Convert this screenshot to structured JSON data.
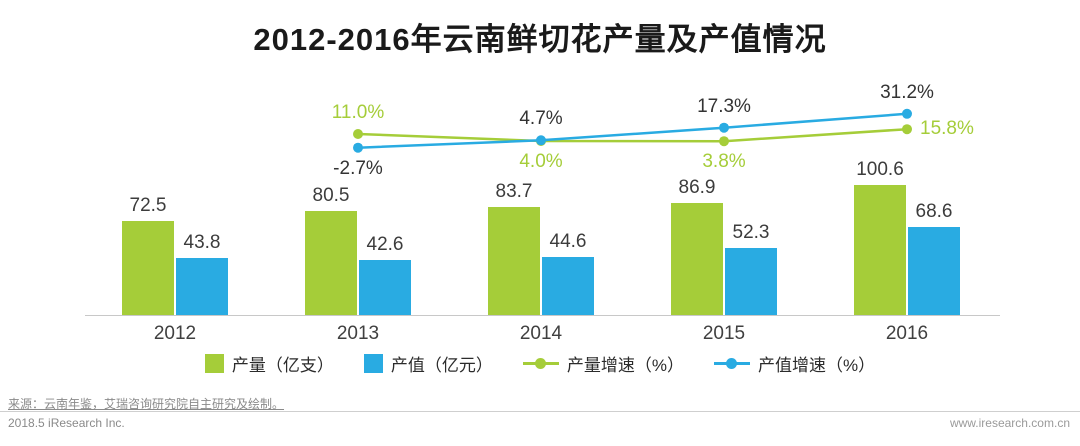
{
  "title": "2012-2016年云南鲜切花产量及产值情况",
  "chart_data": {
    "type": "bar",
    "subtype": "grouped-bars-with-growth-lines",
    "categories": [
      "2012",
      "2013",
      "2014",
      "2015",
      "2016"
    ],
    "bar_series": [
      {
        "name": "产量（亿支）",
        "color": "#a5cd39",
        "values": [
          72.5,
          80.5,
          83.7,
          86.9,
          100.6
        ]
      },
      {
        "name": "产值（亿元）",
        "color": "#29abe2",
        "values": [
          43.8,
          42.6,
          44.6,
          52.3,
          68.6
        ]
      }
    ],
    "line_series": [
      {
        "name": "产量增速（%）",
        "color": "#a5cd39",
        "label_color": "#a5cd39",
        "x": [
          "2013",
          "2014",
          "2015",
          "2016"
        ],
        "values": [
          11.0,
          4.0,
          3.8,
          15.8
        ],
        "labels": [
          "11.0%",
          "4.0%",
          "3.8%",
          "15.8%"
        ],
        "label_positions": [
          "above",
          "below",
          "below",
          "right"
        ]
      },
      {
        "name": "产值增速（%）",
        "color": "#29abe2",
        "label_color": "#333333",
        "x": [
          "2013",
          "2014",
          "2015",
          "2016"
        ],
        "values": [
          -2.7,
          4.7,
          17.3,
          31.2
        ],
        "labels": [
          "-2.7%",
          "4.7%",
          "17.3%",
          "31.2%"
        ],
        "label_positions": [
          "below",
          "above",
          "above",
          "above"
        ]
      }
    ],
    "grid": false,
    "legend_position": "bottom",
    "xlabel": "",
    "ylabel": ""
  },
  "legend": [
    {
      "label": "产量（亿支）",
      "swatch": "square",
      "color": "#a5cd39"
    },
    {
      "label": "产值（亿元）",
      "swatch": "square",
      "color": "#29abe2"
    },
    {
      "label": "产量增速（%）",
      "swatch": "line-dot",
      "color": "#a5cd39"
    },
    {
      "label": "产值增速（%）",
      "swatch": "line-dot",
      "color": "#29abe2"
    }
  ],
  "footer": {
    "source": "来源：云南年鉴，艾瑞咨询研究院自主研究及绘制。",
    "left": "2018.5 iResearch Inc.",
    "right": "www.iresearch.com.cn"
  }
}
